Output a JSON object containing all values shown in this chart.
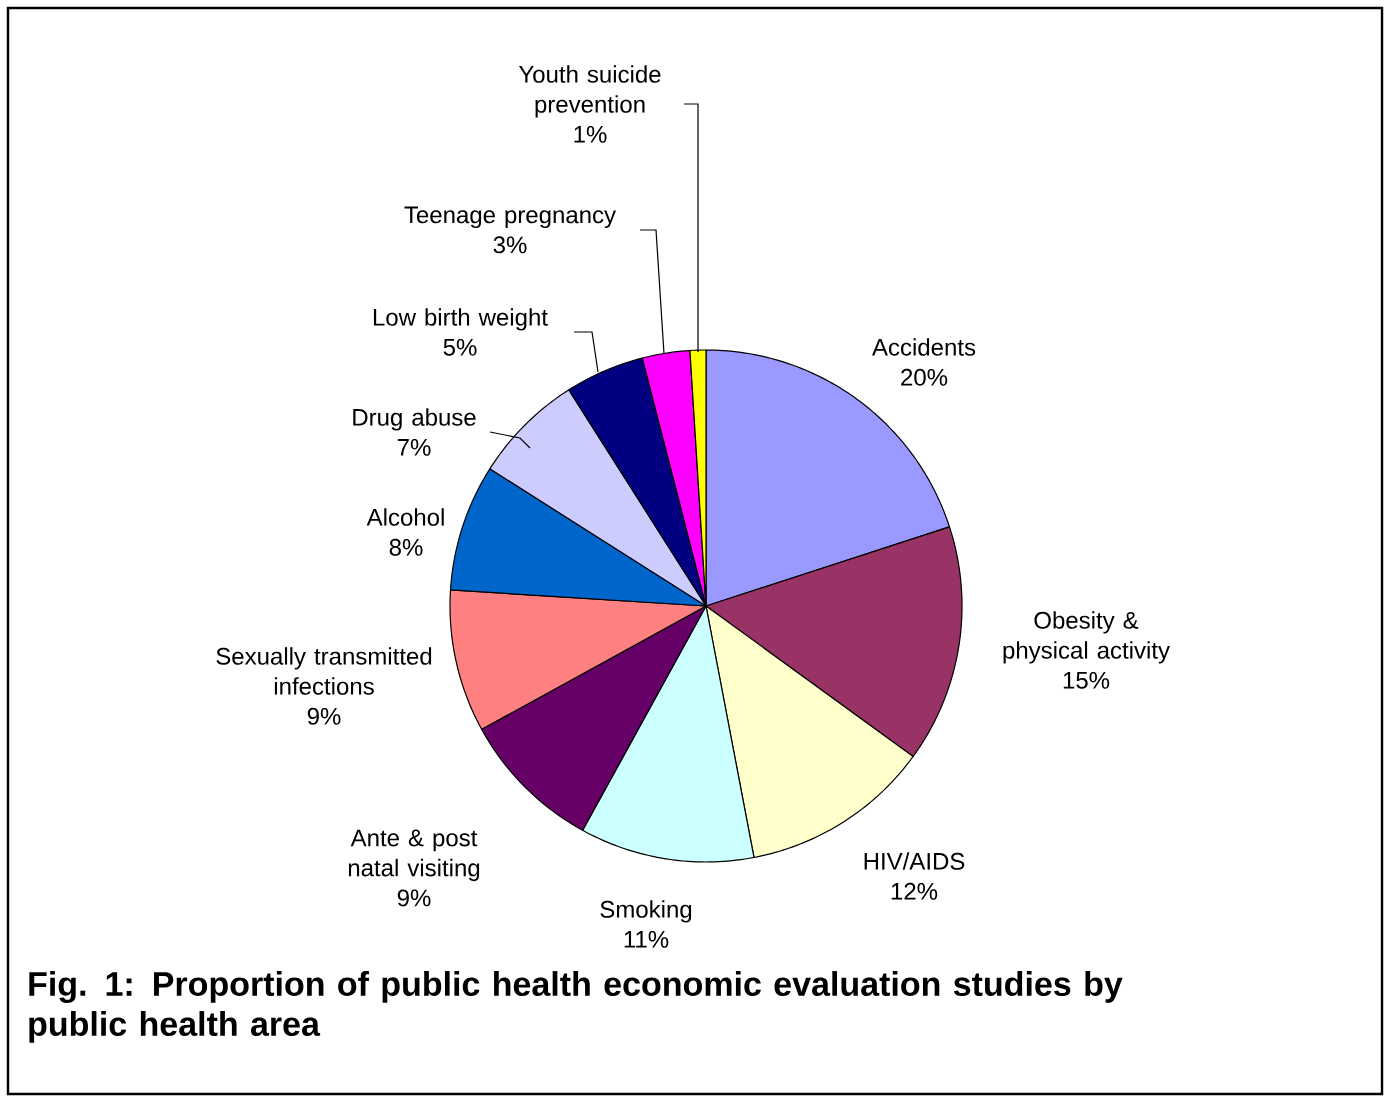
{
  "chart_data": {
    "type": "pie",
    "title": "Fig. 1: Proportion of public health economic evaluation studies by public health area",
    "categories": [
      "Accidents",
      "Obesity & physical activity",
      "HIV/AIDS",
      "Smoking",
      "Ante & post natal visiting",
      "Sexually transmitted infections",
      "Alcohol",
      "Drug abuse",
      "Low birth weight",
      "Teenage pregnancy",
      "Youth suicide prevention"
    ],
    "values": [
      20,
      15,
      12,
      11,
      9,
      9,
      8,
      7,
      5,
      3,
      1
    ],
    "value_labels": [
      "20%",
      "15%",
      "12%",
      "11%",
      "9%",
      "9%",
      "8%",
      "7%",
      "5%",
      "3%",
      "1%"
    ],
    "colors": [
      "#9999ff",
      "#993366",
      "#ffffcc",
      "#ccffff",
      "#660066",
      "#ff8080",
      "#0066cc",
      "#ccccff",
      "#000080",
      "#ff00ff",
      "#ffff00"
    ]
  }
}
